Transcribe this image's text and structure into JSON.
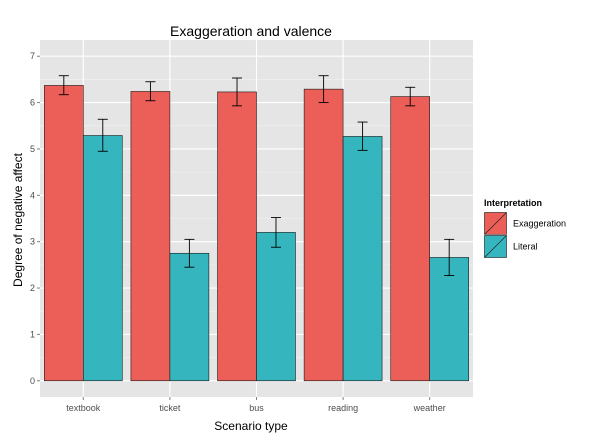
{
  "chart_data": {
    "type": "bar",
    "title": "Exaggeration and valence",
    "xlabel": "Scenario type",
    "ylabel": "Degree of negative affect",
    "categories": [
      "textbook",
      "ticket",
      "bus",
      "reading",
      "weather"
    ],
    "ylim": [
      -0.35,
      7.35
    ],
    "yticks": [
      0,
      1,
      2,
      3,
      4,
      5,
      6,
      7
    ],
    "grid": true,
    "legend": {
      "title": "Interpretation",
      "position": "right"
    },
    "series": [
      {
        "name": "Exaggeration",
        "color": "#ec5f58",
        "values": [
          6.37,
          6.24,
          6.23,
          6.29,
          6.13
        ],
        "err_low": [
          6.17,
          6.04,
          5.93,
          6.0,
          5.93
        ],
        "err_high": [
          6.58,
          6.45,
          6.53,
          6.58,
          6.33
        ]
      },
      {
        "name": "Literal",
        "color": "#35b5bd",
        "values": [
          5.29,
          2.75,
          3.2,
          5.27,
          2.66
        ],
        "err_low": [
          4.95,
          2.45,
          2.88,
          4.97,
          2.27
        ],
        "err_high": [
          5.64,
          3.05,
          3.52,
          5.58,
          3.05
        ]
      }
    ]
  }
}
